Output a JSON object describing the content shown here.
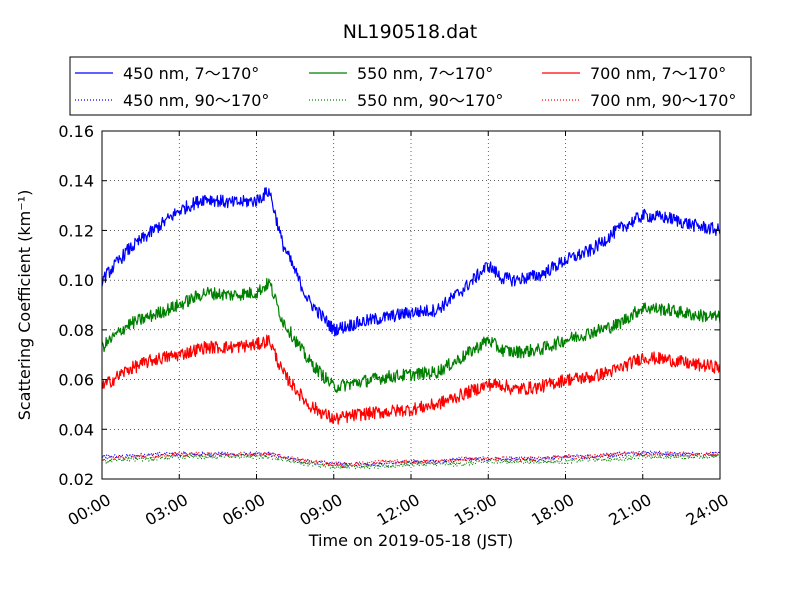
{
  "chart_data": {
    "type": "line",
    "title": "NL190518.dat",
    "xlabel": "Time on 2019-05-18 (JST)",
    "ylabel": "Scattering Coefficient (km⁻¹)",
    "xlim": [
      "00:00",
      "24:00"
    ],
    "ylim": [
      0.02,
      0.16
    ],
    "xticks": [
      "00:00",
      "03:00",
      "06:00",
      "09:00",
      "12:00",
      "15:00",
      "18:00",
      "21:00",
      "24:00"
    ],
    "yticks": [
      "0.02",
      "0.04",
      "0.06",
      "0.08",
      "0.10",
      "0.12",
      "0.14",
      "0.16"
    ],
    "grid": true,
    "legend_position": "top",
    "x": [
      "00:00",
      "01:00",
      "02:00",
      "03:00",
      "04:00",
      "05:00",
      "06:00",
      "06:30",
      "07:00",
      "08:00",
      "09:00",
      "10:00",
      "11:00",
      "12:00",
      "13:00",
      "14:00",
      "15:00",
      "15:30",
      "16:00",
      "17:00",
      "18:00",
      "19:00",
      "20:00",
      "21:00",
      "22:00",
      "23:00",
      "24:00"
    ],
    "series": [
      {
        "name": "450 nm, 7～170°",
        "color": "#0000ff",
        "style": "solid",
        "values": [
          0.1,
          0.112,
          0.12,
          0.128,
          0.133,
          0.131,
          0.132,
          0.136,
          0.115,
          0.092,
          0.08,
          0.083,
          0.085,
          0.087,
          0.088,
          0.096,
          0.106,
          0.101,
          0.1,
          0.102,
          0.108,
          0.112,
          0.12,
          0.126,
          0.125,
          0.122,
          0.12
        ]
      },
      {
        "name": "550 nm, 7～170°",
        "color": "#008000",
        "style": "solid",
        "values": [
          0.073,
          0.082,
          0.086,
          0.09,
          0.095,
          0.094,
          0.095,
          0.099,
          0.084,
          0.068,
          0.057,
          0.059,
          0.061,
          0.062,
          0.063,
          0.069,
          0.076,
          0.072,
          0.071,
          0.072,
          0.076,
          0.079,
          0.082,
          0.089,
          0.088,
          0.086,
          0.085
        ]
      },
      {
        "name": "700 nm, 7～170°",
        "color": "#ff0000",
        "style": "solid",
        "values": [
          0.057,
          0.064,
          0.068,
          0.07,
          0.073,
          0.073,
          0.074,
          0.076,
          0.063,
          0.05,
          0.044,
          0.046,
          0.047,
          0.048,
          0.05,
          0.054,
          0.058,
          0.058,
          0.056,
          0.057,
          0.06,
          0.061,
          0.064,
          0.069,
          0.068,
          0.066,
          0.065
        ]
      },
      {
        "name": "450 nm, 90～170°",
        "color": "#0000ff",
        "style": "dotted",
        "values": [
          0.029,
          0.029,
          0.03,
          0.03,
          0.03,
          0.03,
          0.03,
          0.03,
          0.029,
          0.027,
          0.026,
          0.026,
          0.026,
          0.027,
          0.027,
          0.028,
          0.028,
          0.028,
          0.028,
          0.028,
          0.029,
          0.029,
          0.03,
          0.031,
          0.03,
          0.03,
          0.03
        ]
      },
      {
        "name": "550 nm, 90～170°",
        "color": "#008000",
        "style": "dotted",
        "values": [
          0.027,
          0.028,
          0.028,
          0.029,
          0.029,
          0.029,
          0.029,
          0.029,
          0.028,
          0.026,
          0.025,
          0.025,
          0.025,
          0.026,
          0.026,
          0.026,
          0.027,
          0.027,
          0.027,
          0.027,
          0.027,
          0.028,
          0.028,
          0.029,
          0.029,
          0.029,
          0.029
        ]
      },
      {
        "name": "700 nm, 90～170°",
        "color": "#ff0000",
        "style": "dotted",
        "values": [
          0.028,
          0.029,
          0.029,
          0.03,
          0.03,
          0.03,
          0.03,
          0.03,
          0.029,
          0.027,
          0.026,
          0.026,
          0.027,
          0.027,
          0.027,
          0.028,
          0.028,
          0.028,
          0.028,
          0.028,
          0.029,
          0.029,
          0.03,
          0.03,
          0.03,
          0.03,
          0.03
        ]
      }
    ]
  }
}
